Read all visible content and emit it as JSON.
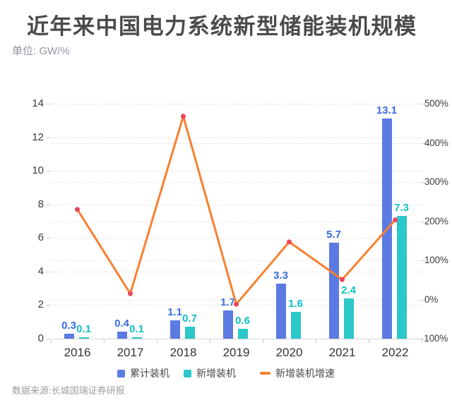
{
  "header": {
    "title": "近年来中国电力系统新型储能装机规模",
    "unit_label": "单位: GW/%"
  },
  "footer": {
    "source": "数据来源:长城国瑞证券研报"
  },
  "colors": {
    "background": "#ffffff",
    "title_text": "#4a4a4a",
    "subtitle_text": "#8f959e",
    "axis_text": "#3d3d3d",
    "year_text": "#333333",
    "grid_line": "#e7e7e7",
    "axis_line": "#d4d4d4",
    "tick_mark": "#c9c9c9",
    "legend_text": "#4a4a4a",
    "source_text": "#9aa0a6"
  },
  "chart_data": {
    "type": "bar",
    "title": "近年来中国电力系统新型储能装机规模",
    "subtitle_unit": "单位: GW/%",
    "categories": [
      "2016",
      "2017",
      "2018",
      "2019",
      "2020",
      "2021",
      "2022"
    ],
    "series": [
      {
        "id": "cumulative",
        "name": "累计装机",
        "type": "bar",
        "axis": "left",
        "unit": "GW",
        "color": "#5b7be2",
        "label_color": "#3a6be0",
        "values": [
          0.3,
          0.4,
          1.1,
          1.7,
          3.3,
          5.7,
          13.1
        ]
      },
      {
        "id": "new",
        "name": "新增装机",
        "type": "bar",
        "axis": "left",
        "unit": "GW",
        "color": "#2cc7ca",
        "label_color": "#0fc0c5",
        "values": [
          0.1,
          0.1,
          0.7,
          0.6,
          1.6,
          2.4,
          7.3
        ]
      },
      {
        "id": "growth",
        "name": "新增装机增速",
        "type": "line",
        "axis": "right",
        "unit": "%",
        "color": "#f8802f",
        "marker_color": "#e9475d",
        "values": [
          230,
          15,
          468,
          -12,
          147,
          51,
          203
        ]
      }
    ],
    "left_axis": {
      "min": 0,
      "max": 14,
      "step": 2
    },
    "right_axis": {
      "min": -100,
      "max": 500,
      "step": 100,
      "suffix": "%"
    },
    "grid": true,
    "legend_position": "bottom"
  },
  "legend": {
    "items": [
      {
        "id": "cumulative",
        "label": "累计装机",
        "mark": "square",
        "color": "#5b7be2"
      },
      {
        "id": "new",
        "label": "新增装机",
        "mark": "square",
        "color": "#2cc7ca"
      },
      {
        "id": "growth",
        "label": "新增装机增速",
        "mark": "dash",
        "color": "#f8802f"
      }
    ]
  }
}
